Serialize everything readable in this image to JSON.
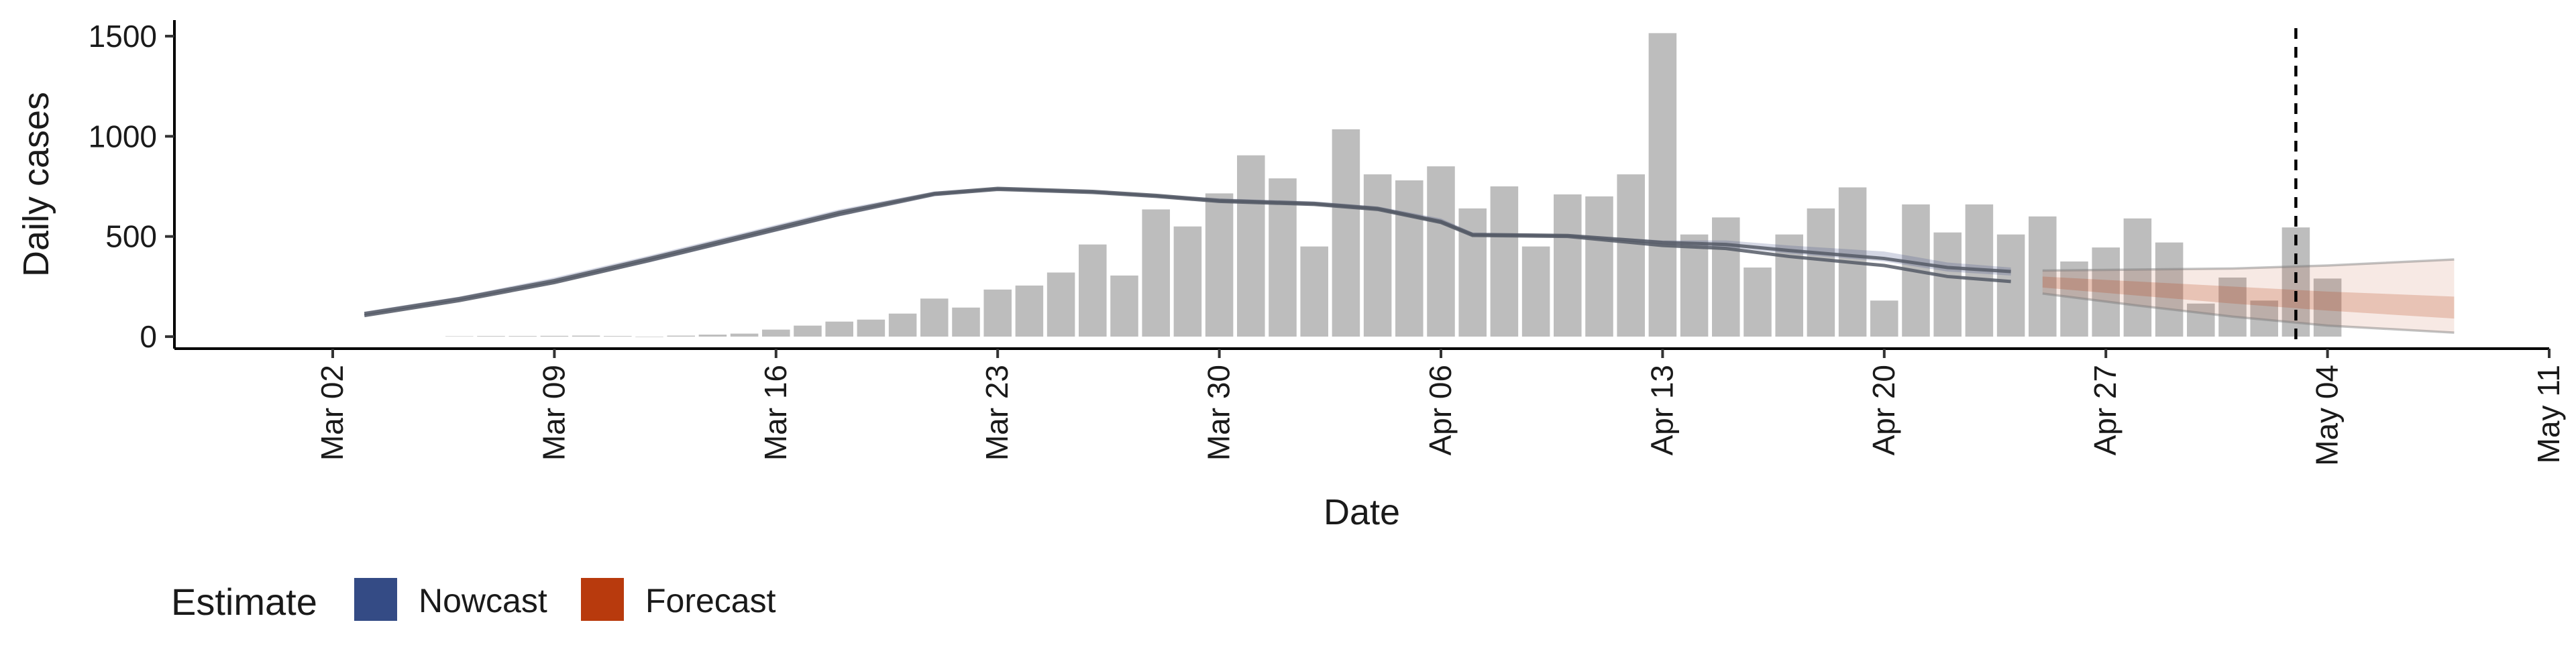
{
  "chart_data": {
    "type": "bar",
    "xlabel": "Date",
    "ylabel": "Daily cases",
    "ylim": [
      -60,
      1580
    ],
    "xlim": [
      "2020-02-26",
      "2020-05-11"
    ],
    "yticks": [
      0,
      500,
      1000,
      1500
    ],
    "xticks": [
      {
        "date": "2020-03-02",
        "label": "Mar 02"
      },
      {
        "date": "2020-03-09",
        "label": "Mar 09"
      },
      {
        "date": "2020-03-16",
        "label": "Mar 16"
      },
      {
        "date": "2020-03-23",
        "label": "Mar 23"
      },
      {
        "date": "2020-03-30",
        "label": "Mar 30"
      },
      {
        "date": "2020-04-06",
        "label": "Apr 06"
      },
      {
        "date": "2020-04-13",
        "label": "Apr 13"
      },
      {
        "date": "2020-04-20",
        "label": "Apr 20"
      },
      {
        "date": "2020-04-27",
        "label": "Apr 27"
      },
      {
        "date": "2020-05-04",
        "label": "May 04"
      },
      {
        "date": "2020-05-11",
        "label": "May 11"
      }
    ],
    "bars": {
      "start_date": "2020-03-06",
      "values": [
        2,
        3,
        3,
        4,
        5,
        3,
        0,
        5,
        10,
        15,
        35,
        55,
        75,
        85,
        115,
        190,
        145,
        235,
        255,
        320,
        460,
        305,
        635,
        550,
        715,
        905,
        790,
        450,
        1035,
        810,
        780,
        850,
        640,
        750,
        450,
        710,
        700,
        810,
        1515,
        510,
        595,
        345,
        510,
        640,
        745,
        180,
        660,
        520,
        660,
        510,
        600,
        375,
        445,
        590,
        470,
        165,
        295,
        180,
        545,
        290
      ],
      "color": "#bdbdbd"
    },
    "series": [
      {
        "name": "Nowcast",
        "color": "#3b4a82",
        "band": {
          "dates": [
            "2020-03-03",
            "2020-03-06",
            "2020-03-09",
            "2020-03-12",
            "2020-03-15",
            "2020-03-18",
            "2020-03-21",
            "2020-03-23",
            "2020-03-26",
            "2020-03-28",
            "2020-03-30",
            "2020-04-02",
            "2020-04-04",
            "2020-04-06",
            "2020-04-07",
            "2020-04-10",
            "2020-04-13",
            "2020-04-15",
            "2020-04-17",
            "2020-04-20",
            "2020-04-22",
            "2020-04-24"
          ],
          "lower": [
            100,
            175,
            265,
            370,
            485,
            600,
            700,
            730,
            715,
            695,
            670,
            655,
            630,
            565,
            505,
            495,
            460,
            445,
            415,
            375,
            325,
            305
          ],
          "upper": [
            125,
            200,
            295,
            405,
            520,
            635,
            725,
            745,
            730,
            710,
            690,
            675,
            650,
            590,
            520,
            510,
            480,
            480,
            455,
            425,
            370,
            345
          ]
        },
        "lines": [
          {
            "dates": [
              "2020-03-03",
              "2020-03-06",
              "2020-03-09",
              "2020-03-12",
              "2020-03-15",
              "2020-03-18",
              "2020-03-21",
              "2020-03-23",
              "2020-03-26",
              "2020-03-28",
              "2020-03-30",
              "2020-04-02",
              "2020-04-04",
              "2020-04-06",
              "2020-04-07",
              "2020-04-10",
              "2020-04-13",
              "2020-04-15",
              "2020-04-17",
              "2020-04-20",
              "2020-04-22",
              "2020-04-24"
            ],
            "values": [
              115,
              190,
              280,
              390,
              505,
              620,
              715,
              740,
              725,
              705,
              680,
              665,
              640,
              575,
              510,
              505,
              470,
              460,
              430,
              390,
              345,
              325
            ]
          },
          {
            "dates": [
              "2020-03-03",
              "2020-03-06",
              "2020-03-09",
              "2020-03-12",
              "2020-03-15",
              "2020-03-18",
              "2020-03-21",
              "2020-03-23",
              "2020-03-26",
              "2020-03-28",
              "2020-03-30",
              "2020-04-02",
              "2020-04-04",
              "2020-04-06",
              "2020-04-07",
              "2020-04-10",
              "2020-04-13",
              "2020-04-15",
              "2020-04-17",
              "2020-04-20",
              "2020-04-22",
              "2020-04-24"
            ],
            "values": [
              105,
              180,
              270,
              380,
              495,
              610,
              710,
              735,
              720,
              700,
              675,
              660,
              635,
              570,
              505,
              500,
              455,
              440,
              400,
              355,
              300,
              275
            ]
          }
        ]
      },
      {
        "name": "Forecast",
        "color": "#b83a0d",
        "bands": [
          {
            "dates": [
              "2020-04-25",
              "2020-04-28",
              "2020-05-01",
              "2020-05-04",
              "2020-05-08"
            ],
            "lower": [
              215,
              155,
              100,
              55,
              20
            ],
            "upper": [
              330,
              335,
              340,
              355,
              385
            ],
            "opacity": 0.11
          },
          {
            "dates": [
              "2020-04-25",
              "2020-04-28",
              "2020-05-01",
              "2020-05-04",
              "2020-05-08"
            ],
            "lower": [
              245,
              205,
              165,
              130,
              90
            ],
            "upper": [
              300,
              275,
              250,
              225,
              200
            ],
            "opacity": 0.22
          }
        ],
        "edges": [
          {
            "dates": [
              "2020-04-25",
              "2020-04-28",
              "2020-05-01",
              "2020-05-04",
              "2020-05-08"
            ],
            "values": [
              215,
              155,
              100,
              55,
              20
            ]
          },
          {
            "dates": [
              "2020-04-25",
              "2020-04-28",
              "2020-05-01",
              "2020-05-04",
              "2020-05-08"
            ],
            "values": [
              330,
              335,
              340,
              355,
              385
            ]
          }
        ]
      }
    ],
    "vline": {
      "date": "2020-05-03"
    },
    "grid": false,
    "legend": {
      "placement": "bottom-left",
      "title": "Estimate",
      "items": [
        {
          "label": "Nowcast",
          "color": "#344b85"
        },
        {
          "label": "Forecast",
          "color": "#b83a0d"
        }
      ]
    }
  }
}
